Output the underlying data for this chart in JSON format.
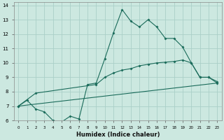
{
  "xlabel": "Humidex (Indice chaleur)",
  "bg_color": "#cce8e0",
  "grid_color": "#aacfc8",
  "line_color": "#1a6b5a",
  "xlim": [
    -0.5,
    23.5
  ],
  "ylim": [
    6,
    14.2
  ],
  "xticks": [
    0,
    1,
    2,
    3,
    4,
    5,
    6,
    7,
    8,
    9,
    10,
    11,
    12,
    13,
    14,
    15,
    16,
    17,
    18,
    19,
    20,
    21,
    22,
    23
  ],
  "yticks": [
    6,
    7,
    8,
    9,
    10,
    11,
    12,
    13,
    14
  ],
  "line1_x": [
    0,
    1,
    2,
    3,
    4,
    5,
    6,
    7,
    8,
    9,
    10,
    11,
    12,
    13,
    14,
    15,
    16,
    17,
    18,
    19,
    20,
    21,
    22,
    23
  ],
  "line1_y": [
    7.0,
    7.4,
    6.8,
    6.6,
    6.0,
    5.9,
    6.3,
    6.1,
    8.5,
    8.6,
    10.3,
    12.1,
    13.7,
    12.9,
    12.5,
    13.0,
    12.5,
    11.7,
    11.7,
    11.1,
    10.0,
    9.0,
    9.0,
    8.6
  ],
  "line2_x": [
    0,
    2,
    9,
    10,
    11,
    12,
    13,
    14,
    15,
    16,
    17,
    18,
    19,
    20,
    21,
    22,
    23
  ],
  "line2_y": [
    7.0,
    7.9,
    8.5,
    9.0,
    9.3,
    9.5,
    9.6,
    9.8,
    9.9,
    10.0,
    10.05,
    10.1,
    10.2,
    10.0,
    9.0,
    9.0,
    8.7
  ],
  "line3_x": [
    0,
    23
  ],
  "line3_y": [
    7.0,
    8.6
  ]
}
